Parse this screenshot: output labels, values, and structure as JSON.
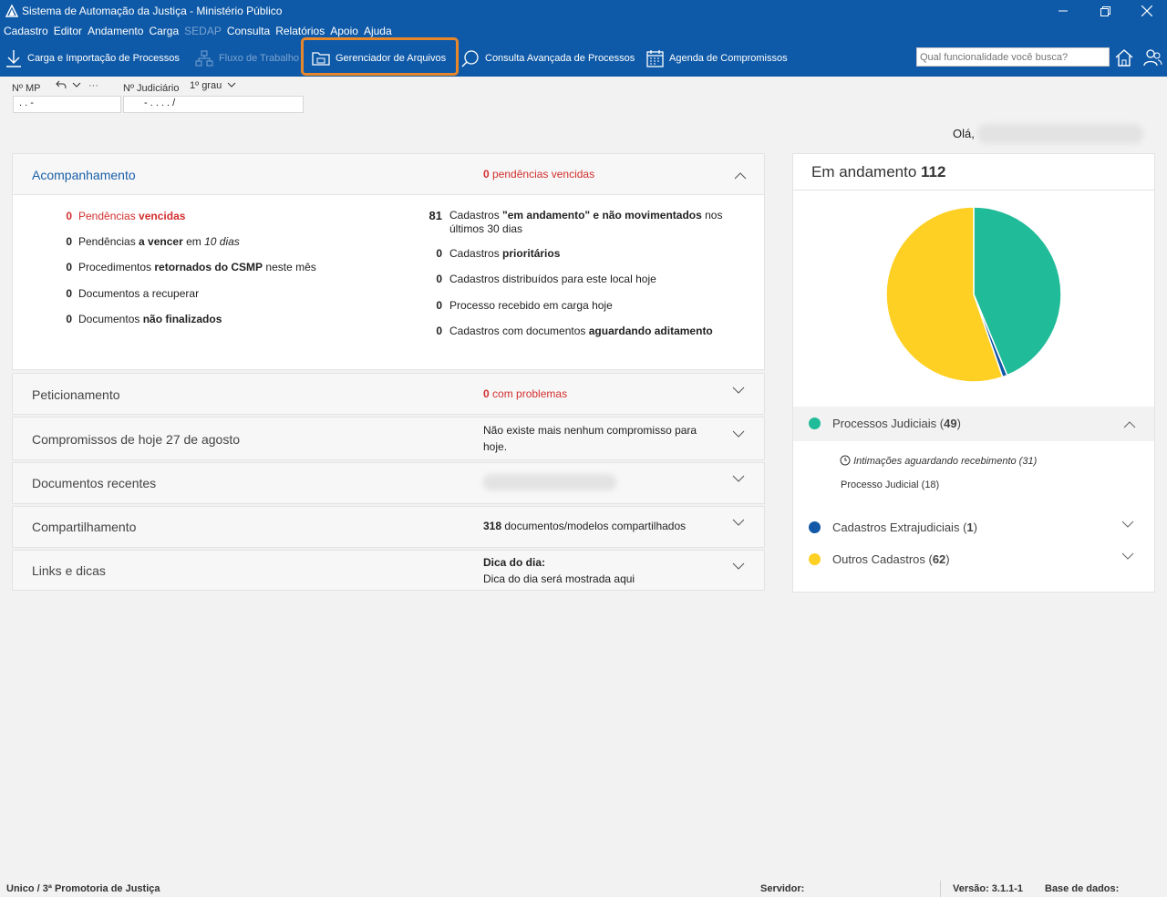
{
  "window": {
    "title": "Sistema de Automação da Justiça - Ministério Público"
  },
  "menu": [
    "Cadastro",
    "Editor",
    "Andamento",
    "Carga",
    "SEDAP",
    "Consulta",
    "Relatórios",
    "Apoio",
    "Ajuda"
  ],
  "toolbar": {
    "carga": "Carga e Importação de Processos",
    "fluxo": "Fluxo de Trabalho",
    "gerenciador": "Gerenciador de Arquivos",
    "consulta": "Consulta Avançada de Processos",
    "agenda": "Agenda de Compromissos",
    "search_placeholder": "Qual funcionalidade você busca?"
  },
  "fields": {
    "mp_label": "Nº MP",
    "mp_value": ". .     -",
    "more": "···",
    "judicial_label": "Nº Judiciário",
    "grau": "1º grau",
    "judicial_value": "-  .  . . .   /"
  },
  "greeting": "Olá,",
  "acompanhamento": {
    "title": "Acompanhamento",
    "summary_num": "0",
    "summary_text": "pendências vencidas",
    "left": [
      {
        "num": "0",
        "pre": "Pendências ",
        "bold": "vencidas",
        "post": "",
        "italic": ""
      },
      {
        "num": "0",
        "pre": "Pendências ",
        "bold": "a vencer",
        "post": " em ",
        "italic": "10 dias"
      },
      {
        "num": "0",
        "pre": "Procedimentos ",
        "bold": "retornados do CSMP",
        "post": " neste mês",
        "italic": ""
      },
      {
        "num": "0",
        "pre": "Documentos a recuperar",
        "bold": "",
        "post": "",
        "italic": ""
      },
      {
        "num": "0",
        "pre": "Documentos ",
        "bold": "não finalizados",
        "post": "",
        "italic": ""
      }
    ],
    "right": [
      {
        "num": "81",
        "pre": "Cadastros ",
        "bold": "\"em andamento\" e não movimentados",
        "post": " nos",
        "line2": "últimos 30 dias"
      },
      {
        "num": "0",
        "pre": "Cadastros ",
        "bold": "prioritários",
        "post": "",
        "line2": ""
      },
      {
        "num": "0",
        "pre": "Cadastros distribuídos para este local hoje",
        "bold": "",
        "post": "",
        "line2": ""
      },
      {
        "num": "0",
        "pre": "Processo recebido em carga hoje",
        "bold": "",
        "post": "",
        "line2": ""
      },
      {
        "num": "0",
        "pre": "Cadastros com documentos ",
        "bold": "aguardando aditamento",
        "post": "",
        "line2": ""
      }
    ]
  },
  "peticionamento": {
    "title": "Peticionamento",
    "num": "0",
    "text": "com problemas"
  },
  "compromissos": {
    "title": "Compromissos de hoje 27 de agosto",
    "line1": "Não existe mais nenhum compromisso para",
    "line2": "hoje."
  },
  "documentos": {
    "title": "Documentos recentes"
  },
  "compartilhamento": {
    "title": "Compartilhamento",
    "num": "318",
    "text": "documentos/modelos compartilhados"
  },
  "links": {
    "title": "Links e dicas",
    "head": "Dica do dia:",
    "text": "Dica do dia será mostrada aqui"
  },
  "em_andamento": {
    "label": "Em andamento",
    "total": "112",
    "colors": {
      "judiciais": "#20bb98",
      "extrajudiciais": "#1358a6",
      "outros": "#fdd023"
    },
    "chart_data": {
      "type": "pie",
      "categories": [
        "Processos Judiciais",
        "Cadastros Extrajudiciais",
        "Outros Cadastros"
      ],
      "values": [
        49,
        1,
        62
      ]
    },
    "legend": [
      {
        "name": "Processos Judiciais",
        "count": "49"
      },
      {
        "name": "Cadastros Extrajudiciais",
        "count": "1"
      },
      {
        "name": "Outros Cadastros",
        "count": "62"
      }
    ],
    "sub": {
      "intimacoes": "Intimações aguardando recebimento (31)",
      "processo": "Processo Judicial (18)"
    }
  },
  "status": {
    "local": "Unico / 3ª Promotoria de Justiça",
    "servidor": "Servidor:",
    "versao": "Versão: 3.1.1-1",
    "base": "Base de dados:"
  }
}
